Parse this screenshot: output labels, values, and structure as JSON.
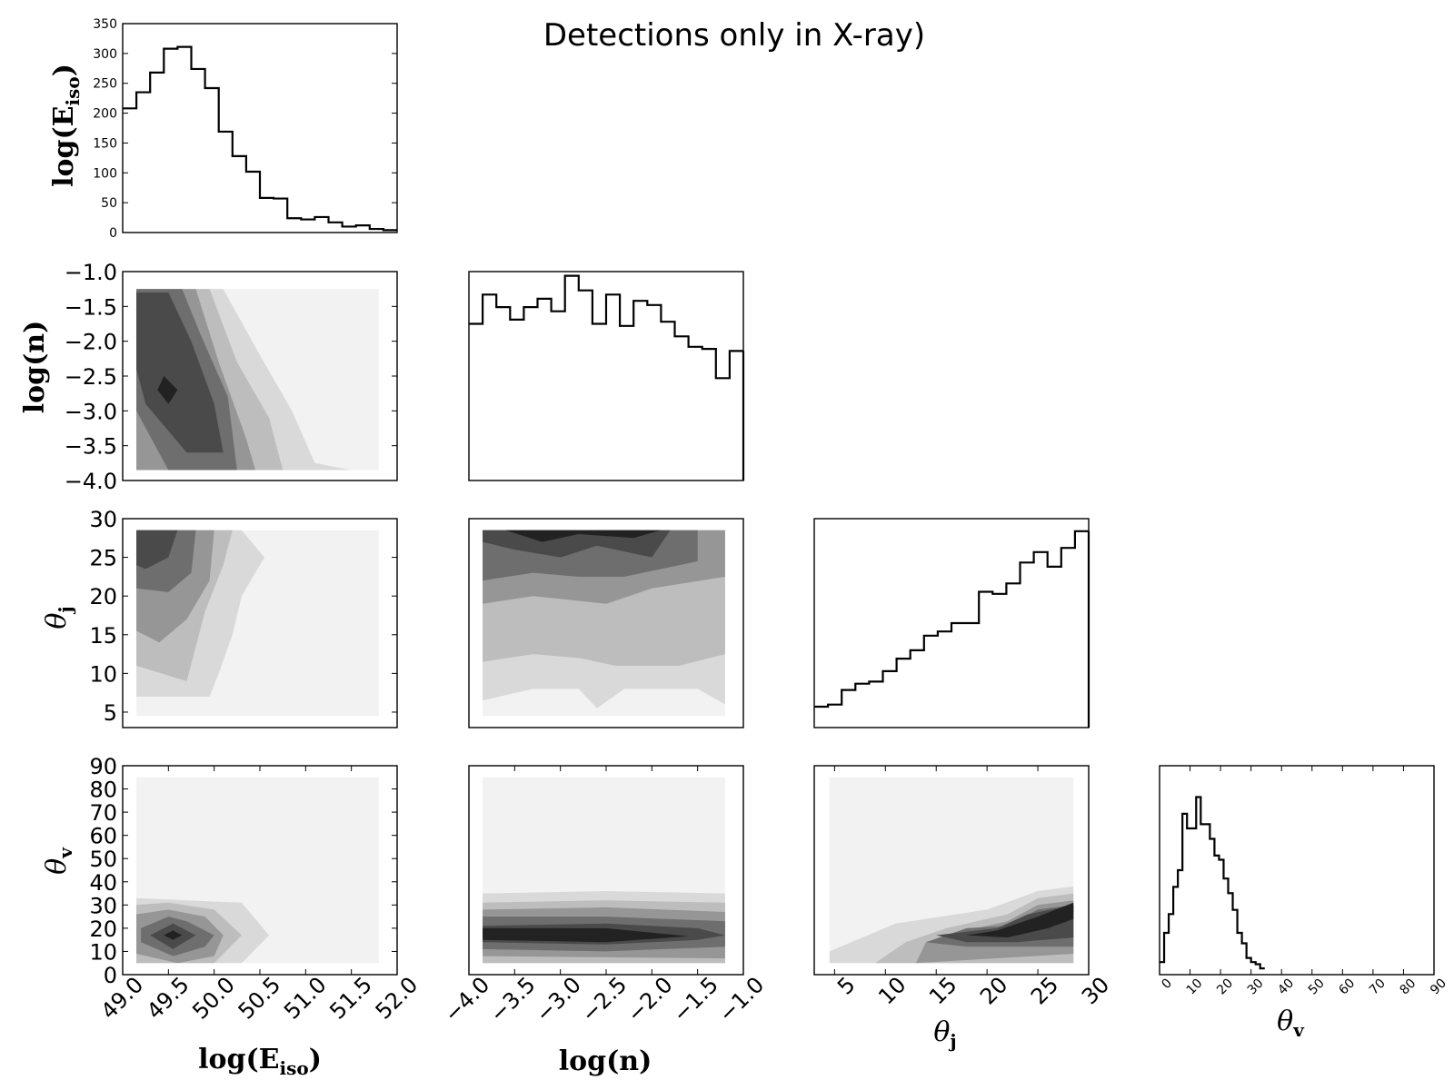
{
  "title": "Detections only in X-ray)",
  "labels": {
    "Eiso": {
      "main": "log(E",
      "sub": "iso",
      "close": ")"
    },
    "n": {
      "main": "log(n)"
    },
    "thj": {
      "main": "θ",
      "sub": "j"
    },
    "thv": {
      "main": "θ",
      "sub": "v"
    }
  },
  "chart_data": [
    {
      "type": "bar",
      "subtype": "histogram-step",
      "panel": "log(E_iso) marginal",
      "x_range": [
        49.0,
        52.0
      ],
      "ylim": [
        0,
        350
      ],
      "y_ticks": [
        "0",
        "50",
        "100",
        "150",
        "200",
        "250",
        "300",
        "350"
      ],
      "bin_edges": [
        49.0,
        49.15,
        49.3,
        49.45,
        49.6,
        49.75,
        49.9,
        50.05,
        50.2,
        50.35,
        50.5,
        50.65,
        50.8,
        50.95,
        51.1,
        51.25,
        51.4,
        51.55,
        51.7,
        51.85,
        52.0
      ],
      "values": [
        208,
        235,
        268,
        308,
        311,
        274,
        242,
        169,
        128,
        102,
        58,
        57,
        24,
        22,
        26,
        17,
        10,
        12,
        6,
        4
      ]
    },
    {
      "type": "heatmap",
      "subtype": "filled-contour",
      "panel": "log(n) vs log(E_iso)",
      "x_range": [
        49.0,
        52.0
      ],
      "y_range": [
        -4.0,
        -1.0
      ],
      "y_ticks": [
        "−1.0",
        "−1.5",
        "−2.0",
        "−2.5",
        "−3.0",
        "−3.5",
        "−4.0"
      ],
      "peak": {
        "x": 49.55,
        "y": -2.7
      }
    },
    {
      "type": "bar",
      "subtype": "histogram-step",
      "panel": "log(n) marginal",
      "x_range": [
        -4.0,
        -1.0
      ],
      "bin_edges": [
        -4.0,
        -3.85,
        -3.7,
        -3.55,
        -3.4,
        -3.25,
        -3.1,
        -2.95,
        -2.8,
        -2.65,
        -2.5,
        -2.35,
        -2.2,
        -2.05,
        -1.9,
        -1.75,
        -1.6,
        -1.45,
        -1.3,
        -1.15,
        -1.0
      ],
      "relative_values": [
        0.75,
        0.89,
        0.83,
        0.77,
        0.83,
        0.87,
        0.81,
        0.98,
        0.91,
        0.75,
        0.89,
        0.74,
        0.86,
        0.84,
        0.76,
        0.69,
        0.64,
        0.63,
        0.49,
        0.62
      ]
    },
    {
      "type": "heatmap",
      "subtype": "filled-contour",
      "panel": "theta_j vs log(E_iso)",
      "x_range": [
        49.0,
        52.0
      ],
      "y_range": [
        3,
        30
      ],
      "y_ticks": [
        "5",
        "10",
        "15",
        "20",
        "25",
        "30"
      ],
      "peak": {
        "x": 49.5,
        "y": 27
      }
    },
    {
      "type": "heatmap",
      "subtype": "filled-contour",
      "panel": "theta_j vs log(n)",
      "x_range": [
        -4.0,
        -1.0
      ],
      "y_range": [
        3,
        30
      ],
      "peak": {
        "x": -2.8,
        "y": 27
      }
    },
    {
      "type": "bar",
      "subtype": "histogram-step",
      "panel": "theta_j marginal",
      "x_range": [
        3,
        30
      ],
      "bin_edges": [
        3,
        4.35,
        5.7,
        7.05,
        8.4,
        9.75,
        11.1,
        12.45,
        13.8,
        15.15,
        16.5,
        17.85,
        19.2,
        20.55,
        21.9,
        23.25,
        24.6,
        25.95,
        27.3,
        28.65,
        30
      ],
      "relative_values": [
        0.1,
        0.11,
        0.18,
        0.21,
        0.22,
        0.27,
        0.33,
        0.37,
        0.44,
        0.46,
        0.5,
        0.5,
        0.65,
        0.64,
        0.69,
        0.79,
        0.84,
        0.77,
        0.86,
        0.94
      ]
    },
    {
      "type": "heatmap",
      "subtype": "filled-contour",
      "panel": "theta_v vs log(E_iso)",
      "x_range": [
        49.0,
        52.0
      ],
      "y_range": [
        0,
        90
      ],
      "y_ticks": [
        "0",
        "10",
        "20",
        "30",
        "40",
        "50",
        "60",
        "70",
        "80",
        "90"
      ],
      "x_ticks": [
        "49.0",
        "49.5",
        "50.0",
        "50.5",
        "51.0",
        "51.5",
        "52.0"
      ],
      "peak": {
        "x": 49.55,
        "y": 17
      }
    },
    {
      "type": "heatmap",
      "subtype": "filled-contour",
      "panel": "theta_v vs log(n)",
      "x_range": [
        -4.0,
        -1.0
      ],
      "y_range": [
        0,
        90
      ],
      "x_ticks": [
        "−4.0",
        "−3.5",
        "−3.0",
        "−2.5",
        "−2.0",
        "−1.5",
        "−1.0"
      ],
      "peak": {
        "x": -2.5,
        "y": 17
      }
    },
    {
      "type": "heatmap",
      "subtype": "filled-contour",
      "panel": "theta_v vs theta_j",
      "x_range": [
        3,
        30
      ],
      "y_range": [
        0,
        90
      ],
      "x_ticks": [
        "5",
        "10",
        "15",
        "20",
        "25",
        "30"
      ],
      "peak": {
        "x": 29,
        "y": 27
      }
    },
    {
      "type": "bar",
      "subtype": "histogram-step",
      "panel": "theta_v marginal",
      "x_range": [
        0,
        90
      ],
      "x_ticks": [
        "0",
        "10",
        "20",
        "30",
        "40",
        "50",
        "60",
        "70",
        "80",
        "90"
      ],
      "bin_edges": [
        0,
        1.5,
        3,
        4.5,
        6,
        7.5,
        9,
        10.5,
        12,
        13.5,
        15,
        16.5,
        18,
        19.5,
        21,
        22.5,
        24,
        25.5,
        27,
        28.5,
        30,
        31.5,
        33,
        34.5
      ],
      "relative_values": [
        0.06,
        0.2,
        0.29,
        0.42,
        0.5,
        0.77,
        0.7,
        0.7,
        0.85,
        0.72,
        0.72,
        0.65,
        0.57,
        0.55,
        0.46,
        0.39,
        0.31,
        0.2,
        0.15,
        0.08,
        0.06,
        0.05,
        0.03
      ]
    }
  ]
}
